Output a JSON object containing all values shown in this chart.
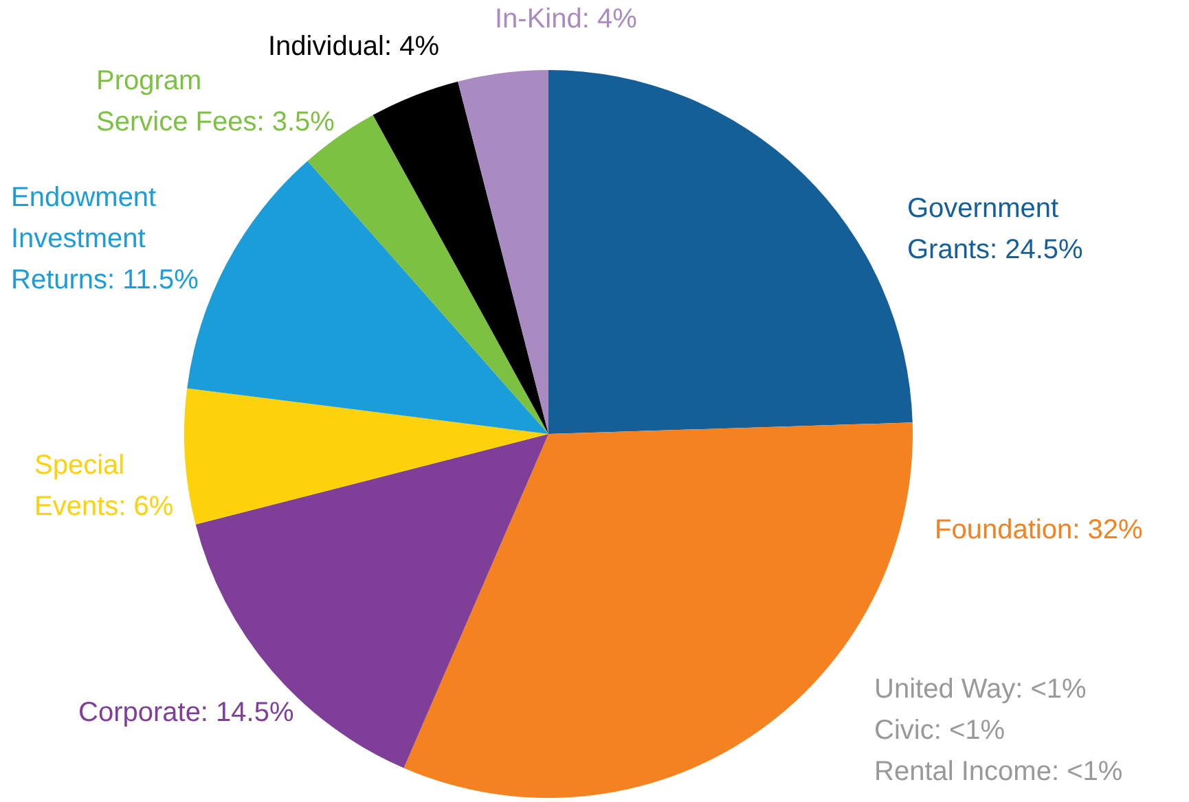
{
  "chart_data": {
    "type": "pie",
    "categories": [
      "Government Grants",
      "Foundation",
      "Corporate",
      "Special Events",
      "Endowment Investment Returns",
      "Program Service Fees",
      "Individual",
      "In-Kind"
    ],
    "values": [
      24.5,
      32,
      14.5,
      6,
      11.5,
      3.5,
      4,
      4
    ],
    "value_labels": [
      "24.5%",
      "32%",
      "14.5%",
      "6%",
      "11.5%",
      "3.5%",
      "4%",
      "4%"
    ],
    "colors": [
      "#155f99",
      "#f58220",
      "#7f3f98",
      "#fdd20a",
      "#1b9dd9",
      "#7dc142",
      "#000000",
      "#a98bc2"
    ],
    "annotations": [
      "United Way: <1%",
      "Civic: <1%",
      "Rental Income: <1%"
    ],
    "legend": false
  }
}
